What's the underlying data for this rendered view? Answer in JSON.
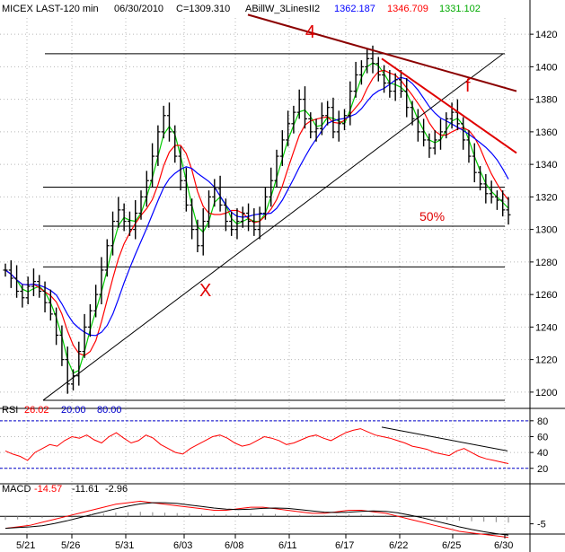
{
  "header": {
    "instrument": "MICEX LAST-120 min",
    "date": "06/30/2010",
    "close": "C=1309.310",
    "indicator": "ABillW_3LinesII2",
    "v1": "1362.187",
    "v2": "1346.709",
    "v3": "1331.102"
  },
  "colors": {
    "blue": "#0000ff",
    "red": "#ff0000",
    "green": "#00cc00",
    "darkred": "#8b0000",
    "grid": "#b8b8b8"
  },
  "annotations": {
    "wave4": "4",
    "wave_x": "X",
    "wave_f": "f",
    "fib": "50%"
  },
  "rsi": {
    "label": "RSI",
    "value": "26.02",
    "low": "20.00",
    "high": "80.00"
  },
  "macd": {
    "label": "MACD",
    "v1": "-14.57",
    "v2": "-11.61",
    "v3": "-2.96"
  },
  "chart_data": {
    "type": "candlestick",
    "price_axis": {
      "ticks": [
        1200,
        1220,
        1240,
        1260,
        1280,
        1300,
        1320,
        1340,
        1360,
        1380,
        1400,
        1420
      ]
    },
    "rsi_axis": {
      "ticks": [
        20,
        40,
        60,
        80
      ]
    },
    "macd_axis": {
      "ticks": [
        -5
      ]
    },
    "x_ticks": [
      "5/21",
      "5/26",
      "5/31",
      "6/03",
      "6/08",
      "6/11",
      "6/17",
      "6/22",
      "6/25",
      "6/30"
    ],
    "close_path": [
      1275,
      1270,
      1262,
      1258,
      1265,
      1268,
      1262,
      1255,
      1248,
      1235,
      1220,
      1205,
      1210,
      1225,
      1240,
      1250,
      1260,
      1275,
      1290,
      1305,
      1312,
      1305,
      1300,
      1310,
      1320,
      1330,
      1345,
      1360,
      1370,
      1360,
      1345,
      1330,
      1315,
      1300,
      1290,
      1305,
      1320,
      1325,
      1315,
      1305,
      1300,
      1305,
      1310,
      1305,
      1300,
      1310,
      1320,
      1330,
      1345,
      1355,
      1365,
      1372,
      1380,
      1368,
      1360,
      1362,
      1370,
      1375,
      1360,
      1365,
      1370,
      1385,
      1395,
      1400,
      1405,
      1402,
      1395,
      1390,
      1385,
      1392,
      1385,
      1375,
      1368,
      1360,
      1355,
      1350,
      1355,
      1360,
      1368,
      1372,
      1365,
      1355,
      1345,
      1335,
      1328,
      1322,
      1320,
      1318,
      1312,
      1309
    ],
    "horizontal_levels": [
      1408,
      1326,
      1302,
      1277,
      1195
    ],
    "rsi_values": [
      42,
      38,
      35,
      30,
      40,
      45,
      50,
      48,
      55,
      60,
      58,
      62,
      56,
      52,
      60,
      65,
      58,
      52,
      55,
      62,
      58,
      50,
      45,
      40,
      38,
      45,
      50,
      55,
      60,
      62,
      58,
      52,
      48,
      50,
      55,
      60,
      58,
      55,
      50,
      52,
      56,
      60,
      62,
      58,
      55,
      60,
      65,
      68,
      70,
      66,
      62,
      60,
      58,
      55,
      52,
      48,
      46,
      44,
      40,
      38,
      36,
      42,
      45,
      40,
      35,
      32,
      30,
      28,
      26
    ],
    "macd_values": [
      -8,
      -7,
      -6,
      -4,
      -2,
      0,
      2,
      4,
      6,
      8,
      9,
      10,
      9,
      8,
      7,
      6,
      5,
      4,
      4,
      5,
      6,
      6,
      5,
      4,
      3,
      2,
      2,
      3,
      4,
      4,
      3,
      2,
      0,
      -2,
      -4,
      -6,
      -8,
      -10,
      -11,
      -12,
      -13,
      -14
    ]
  }
}
